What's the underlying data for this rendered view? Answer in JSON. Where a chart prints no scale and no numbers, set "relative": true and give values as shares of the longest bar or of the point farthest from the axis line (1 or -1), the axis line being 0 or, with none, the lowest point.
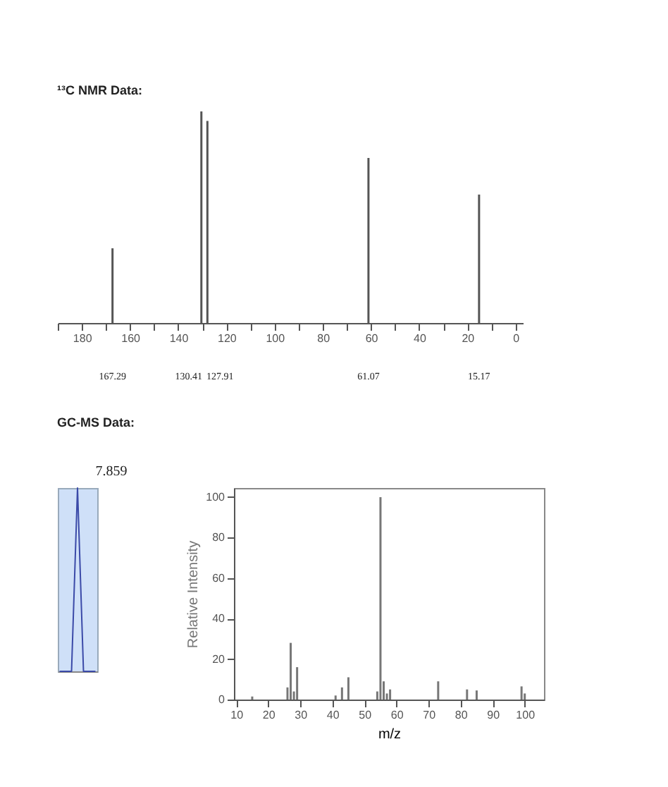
{
  "chart_data": [
    {
      "type": "bar",
      "title": "¹³C NMR Data:",
      "relative": true,
      "color": "#555555",
      "x": [
        167.29,
        130.41,
        127.91,
        61.07,
        15.17
      ],
      "values": [
        0.353,
        1,
        0.955,
        0.78,
        0.607
      ],
      "xlim": [
        190,
        -3
      ],
      "xticks": [
        {
          "value": 190,
          "label": null
        },
        180,
        {
          "value": 170,
          "label": null
        },
        160,
        {
          "value": 150,
          "label": null
        },
        140,
        {
          "value": 130,
          "label": null
        },
        120,
        {
          "value": 110,
          "label": null
        },
        100,
        {
          "value": 90,
          "label": null
        },
        80,
        {
          "value": 70,
          "label": null
        },
        60,
        {
          "value": 50,
          "label": null
        },
        40,
        {
          "value": 30,
          "label": null
        },
        20,
        {
          "value": 10,
          "label": null
        },
        0
      ],
      "grid": false,
      "annotations": [
        "167.29",
        "130.41",
        "127.91",
        "61.07",
        "15.17"
      ]
    },
    {
      "type": "line",
      "title": "GC-MS Data:",
      "relative": true,
      "categories": [
        null,
        null,
        null,
        null,
        null,
        null,
        null
      ],
      "series": [
        {
          "color": "#3b4aa8",
          "values": [
            0,
            0,
            0,
            1,
            0,
            0,
            0
          ]
        }
      ],
      "annotations": [
        "7.859"
      ]
    },
    {
      "type": "bar",
      "xlabel": "m/z",
      "ylabel": "Relative Intensity",
      "color": "#777777",
      "x": [
        15,
        26,
        27,
        28,
        29,
        41,
        43,
        45,
        54,
        55,
        56,
        57,
        58,
        73,
        82,
        85,
        99,
        100
      ],
      "values": [
        1.5,
        6,
        28,
        4,
        16,
        2,
        6,
        11,
        4,
        100,
        9,
        3,
        5,
        9,
        5,
        4.5,
        6.5,
        3
      ],
      "xlim": [
        9.3,
        106
      ],
      "xticks": [
        10,
        20,
        30,
        40,
        50,
        60,
        70,
        80,
        90,
        100
      ],
      "ylim": [
        0,
        104.5
      ],
      "yticks": [
        0,
        20,
        40,
        60,
        80,
        100
      ],
      "grid": false
    }
  ]
}
